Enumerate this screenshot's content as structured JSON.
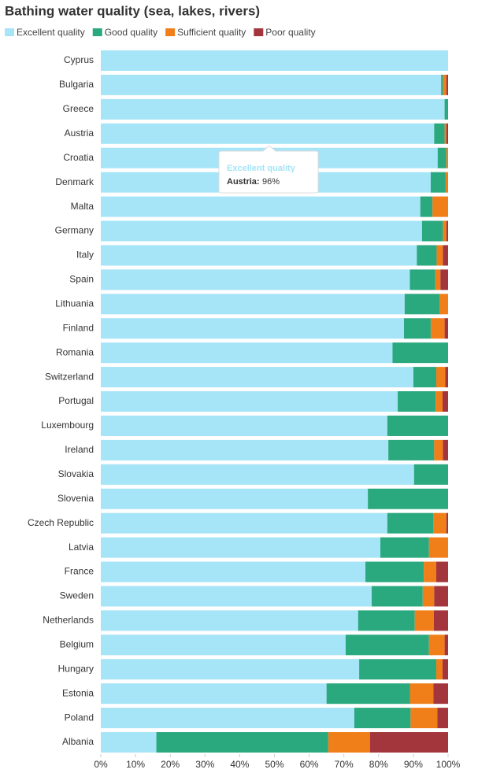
{
  "chart_data": {
    "type": "stacked_barh",
    "title": "Bathing water quality (sea, lakes, rivers)",
    "categories": [
      "Cyprus",
      "Bulgaria",
      "Greece",
      "Austria",
      "Croatia",
      "Denmark",
      "Malta",
      "Germany",
      "Italy",
      "Spain",
      "Lithuania",
      "Finland",
      "Romania",
      "Switzerland",
      "Portugal",
      "Luxembourg",
      "Ireland",
      "Slovakia",
      "Slovenia",
      "Czech Republic",
      "Latvia",
      "France",
      "Sweden",
      "Netherlands",
      "Belgium",
      "Hungary",
      "Estonia",
      "Poland",
      "Albania"
    ],
    "series": [
      {
        "name": "Excellent quality",
        "color": "#a6e4f7",
        "values": [
          100,
          98,
          99,
          96,
          97,
          95,
          92,
          92.5,
          91,
          89,
          87.5,
          87.3,
          84,
          90,
          85.5,
          82.5,
          82.8,
          90.2,
          76.9,
          82.5,
          80.5,
          76.2,
          78,
          74.1,
          70.5,
          74.4,
          65,
          73,
          16
        ]
      },
      {
        "name": "Good quality",
        "color": "#2aa87e",
        "values": [
          0,
          0.5,
          1,
          3,
          2.5,
          4.3,
          3.5,
          6,
          5.7,
          7.3,
          10,
          7.7,
          16,
          6.6,
          10.9,
          17.5,
          13.2,
          9.8,
          23.1,
          13.2,
          14,
          16.8,
          14.7,
          16.3,
          24,
          22.2,
          24,
          16.2,
          49.5
        ]
      },
      {
        "name": "Sufficient quality",
        "color": "#f07f1a",
        "values": [
          0,
          1,
          0,
          0.5,
          0.5,
          0.7,
          4.5,
          1,
          1.8,
          1.5,
          2.5,
          4,
          0,
          2.6,
          2,
          0,
          2.5,
          0,
          0,
          3.8,
          5.5,
          3.6,
          3.3,
          5.5,
          4.5,
          1.8,
          6.8,
          7.7,
          12
        ]
      },
      {
        "name": "Poor quality",
        "color": "#a3363c",
        "values": [
          0,
          0.5,
          0,
          0.5,
          0,
          0,
          0,
          0.5,
          1.5,
          2.2,
          0,
          1,
          0,
          0.8,
          1.6,
          0,
          1.5,
          0,
          0,
          0.5,
          0,
          3.4,
          4,
          4.1,
          1,
          1.6,
          4.2,
          3.1,
          22.5
        ]
      }
    ],
    "xlim": [
      0,
      100
    ],
    "xticks": [
      {
        "value": 0,
        "label": "0%"
      },
      {
        "value": 10,
        "label": "10%"
      },
      {
        "value": 20,
        "label": "20%"
      },
      {
        "value": 30,
        "label": "30%"
      },
      {
        "value": 40,
        "label": "40%"
      },
      {
        "value": 50,
        "label": "50%"
      },
      {
        "value": 60,
        "label": "60%"
      },
      {
        "value": 70,
        "label": "70%"
      },
      {
        "value": 80,
        "label": "80%"
      },
      {
        "value": 90,
        "label": "90%"
      },
      {
        "value": 100,
        "label": "100%"
      }
    ],
    "legend": "top-left",
    "tooltip": {
      "title": "Excellent quality",
      "label": "Austria:",
      "value": "96%"
    }
  }
}
